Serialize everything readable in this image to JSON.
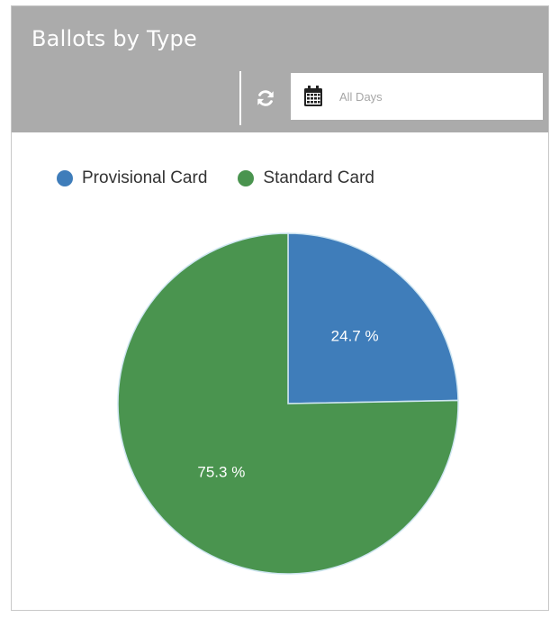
{
  "widget": {
    "title": "Ballots by Type",
    "refresh_icon": "refresh-icon",
    "calendar_icon": "calendar-icon",
    "date_filter": {
      "value": "",
      "placeholder": "All Days"
    }
  },
  "colors": {
    "header_bg": "#ababab",
    "provisional": "#3f7dba",
    "standard": "#4a944f"
  },
  "chart_data": {
    "type": "pie",
    "title": "Ballots by Type",
    "legend_position": "top-left",
    "categories": [
      "Provisional Card",
      "Standard Card"
    ],
    "values": [
      24.7,
      75.3
    ],
    "labels": [
      "24.7 %",
      "75.3 %"
    ],
    "colors": [
      "#3f7dba",
      "#4a944f"
    ]
  }
}
